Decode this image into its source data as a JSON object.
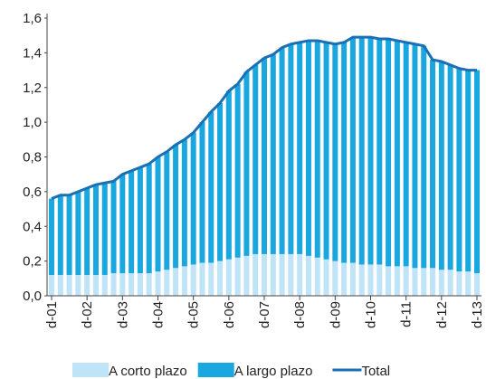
{
  "chart_data": {
    "type": "stacked-bar-line",
    "categories": [
      "d-01",
      null,
      null,
      null,
      "d-02",
      null,
      null,
      null,
      "d-03",
      null,
      null,
      null,
      "d-04",
      null,
      null,
      null,
      "d-05",
      null,
      null,
      null,
      "d-06",
      null,
      null,
      null,
      "d-07",
      null,
      null,
      null,
      "d-08",
      null,
      null,
      null,
      "d-09",
      null,
      null,
      null,
      "d-10",
      null,
      null,
      null,
      "d-11",
      null,
      null,
      null,
      "d-12",
      null,
      null,
      null,
      "d-13"
    ],
    "series": [
      {
        "name": "A corto plazo",
        "color": "#bfe3f7",
        "kind": "bar",
        "values": [
          0.12,
          0.12,
          0.12,
          0.12,
          0.12,
          0.12,
          0.12,
          0.13,
          0.13,
          0.13,
          0.13,
          0.13,
          0.14,
          0.15,
          0.16,
          0.17,
          0.18,
          0.19,
          0.19,
          0.2,
          0.21,
          0.22,
          0.23,
          0.24,
          0.24,
          0.24,
          0.24,
          0.24,
          0.24,
          0.23,
          0.22,
          0.21,
          0.2,
          0.19,
          0.19,
          0.18,
          0.18,
          0.18,
          0.17,
          0.17,
          0.17,
          0.16,
          0.16,
          0.16,
          0.15,
          0.15,
          0.14,
          0.14,
          0.13
        ]
      },
      {
        "name": "A largo plazo",
        "color": "#19a7e0",
        "kind": "bar",
        "values": [
          0.44,
          0.46,
          0.46,
          0.48,
          0.5,
          0.52,
          0.53,
          0.53,
          0.57,
          0.59,
          0.61,
          0.63,
          0.66,
          0.68,
          0.71,
          0.73,
          0.76,
          0.81,
          0.87,
          0.91,
          0.97,
          1.0,
          1.06,
          1.09,
          1.13,
          1.15,
          1.19,
          1.21,
          1.22,
          1.24,
          1.25,
          1.25,
          1.25,
          1.27,
          1.3,
          1.31,
          1.31,
          1.3,
          1.31,
          1.3,
          1.29,
          1.29,
          1.28,
          1.2,
          1.2,
          1.18,
          1.17,
          1.16,
          1.17
        ]
      },
      {
        "name": "Total",
        "color": "#1a6fb5",
        "kind": "line",
        "values": [
          0.56,
          0.58,
          0.58,
          0.6,
          0.62,
          0.64,
          0.65,
          0.66,
          0.7,
          0.72,
          0.74,
          0.76,
          0.8,
          0.83,
          0.87,
          0.9,
          0.94,
          1.0,
          1.06,
          1.11,
          1.18,
          1.22,
          1.29,
          1.33,
          1.37,
          1.39,
          1.43,
          1.45,
          1.46,
          1.47,
          1.47,
          1.46,
          1.45,
          1.46,
          1.49,
          1.49,
          1.49,
          1.48,
          1.48,
          1.47,
          1.46,
          1.45,
          1.44,
          1.36,
          1.35,
          1.33,
          1.31,
          1.3,
          1.3
        ]
      }
    ],
    "ylim": [
      0,
      1.6
    ],
    "yticks": [
      {
        "value": 0,
        "label": "0,0"
      },
      {
        "value": 0.2,
        "label": "0,2"
      },
      {
        "value": 0.4,
        "label": "0,4"
      },
      {
        "value": 0.6,
        "label": "0,6"
      },
      {
        "value": 0.8,
        "label": "0,8"
      },
      {
        "value": 1.0,
        "label": "1,0"
      },
      {
        "value": 1.2,
        "label": "1,2"
      },
      {
        "value": 1.4,
        "label": "1,4"
      },
      {
        "value": 1.6,
        "label": "1,6"
      }
    ],
    "grid": false
  }
}
